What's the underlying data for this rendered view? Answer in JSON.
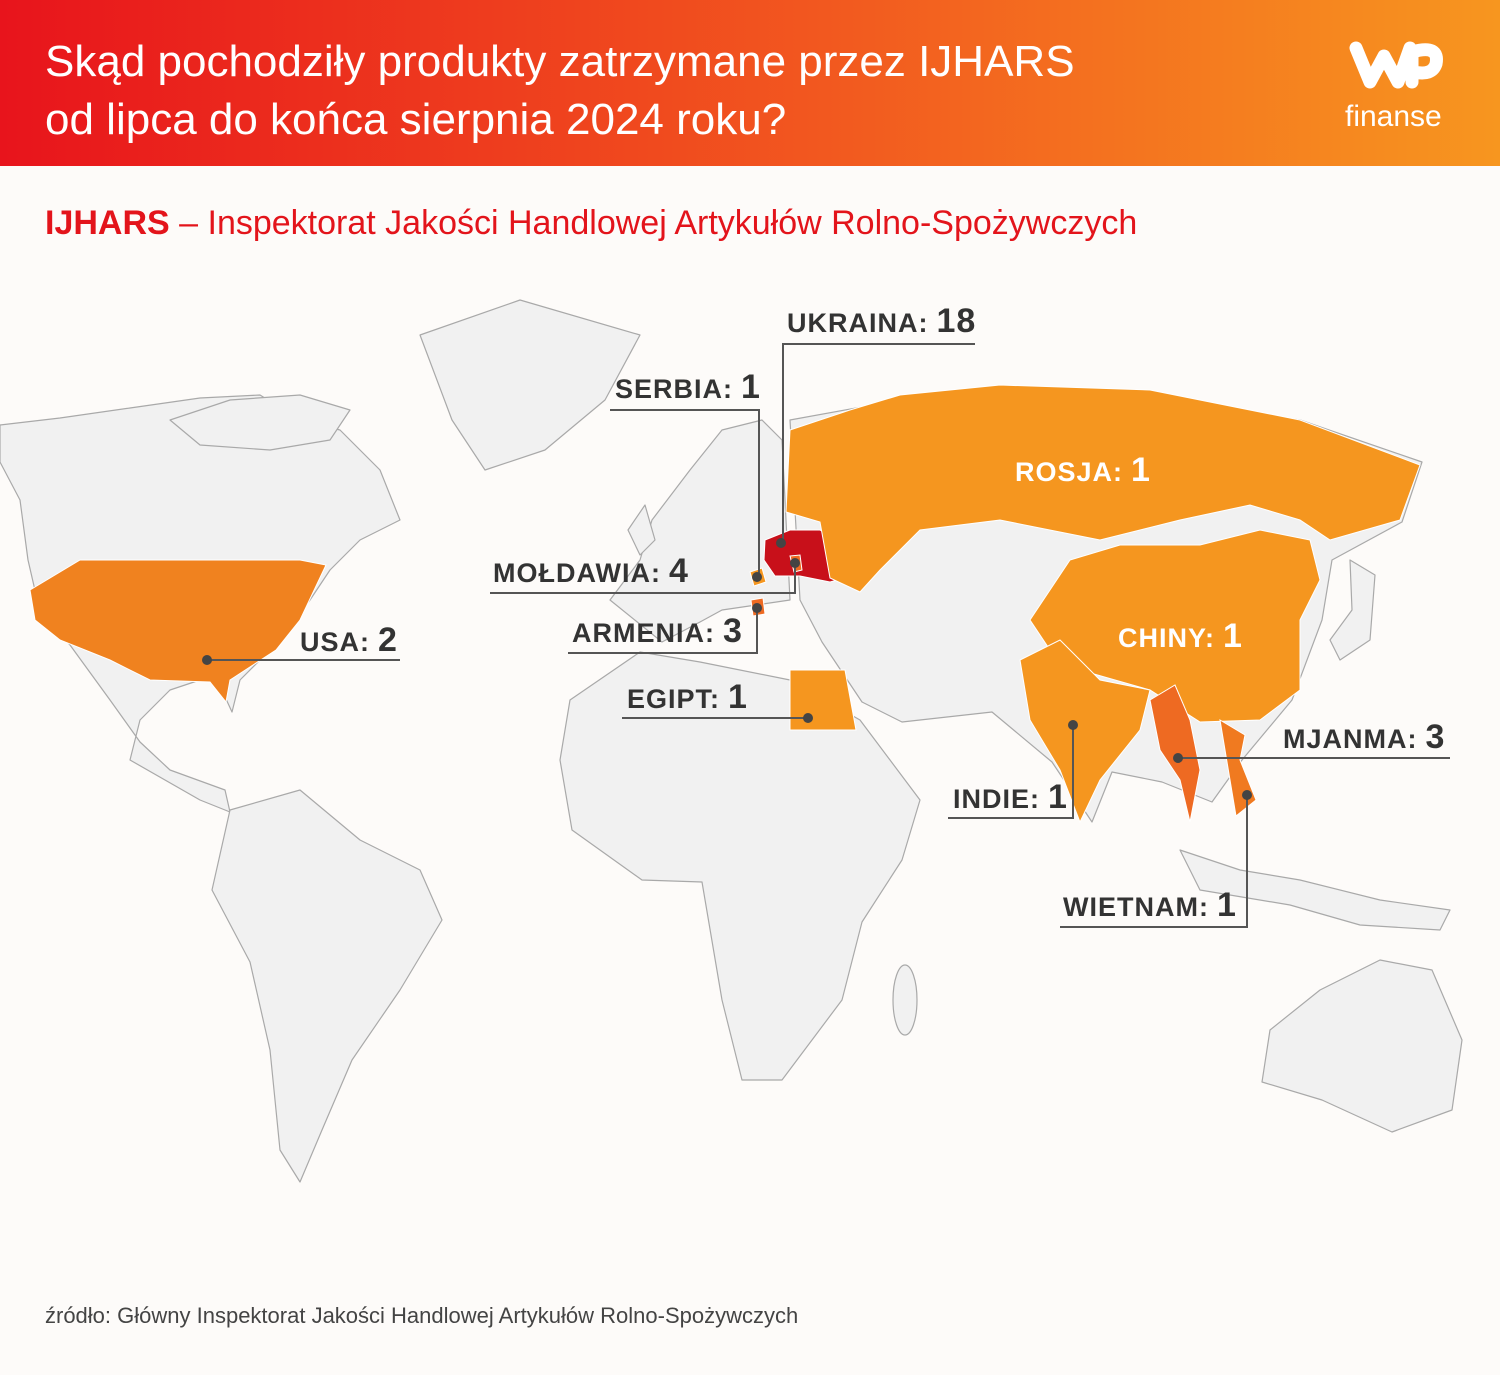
{
  "header": {
    "title": [
      "Skąd pochodziły produkty zatrzymane przez IJHARS",
      "od lipca do końca sierpnia 2024 roku?"
    ],
    "logo": "finanse"
  },
  "subtitle": {
    "abbr": "IJHARS",
    "text": "– Inspektorat Jakości Handlowej Artykułów Rolno-Spożywczych"
  },
  "map": {
    "countries": [
      {
        "name": "UKRAINA:",
        "value": 18,
        "color": "#c8101a"
      },
      {
        "name": "SERBIA:",
        "value": 1,
        "color": "#f5961f"
      },
      {
        "name": "MOŁDAWIA:",
        "value": 4,
        "color": "#ee6a22"
      },
      {
        "name": "ARMENIA:",
        "value": 3,
        "color": "#ee6a22"
      },
      {
        "name": "USA:",
        "value": 2,
        "color": "#f0821f"
      },
      {
        "name": "EGIPT:",
        "value": 1,
        "color": "#f5961f"
      },
      {
        "name": "ROSJA:",
        "value": 1,
        "color": "#f5961f"
      },
      {
        "name": "CHINY:",
        "value": 1,
        "color": "#f5961f"
      },
      {
        "name": "INDIE:",
        "value": 1,
        "color": "#f5961f"
      },
      {
        "name": "MJANMA:",
        "value": 3,
        "color": "#ee6a22"
      },
      {
        "name": "WIETNAM:",
        "value": 1,
        "color": "#f07a20"
      }
    ]
  },
  "source": "źródło: Główny Inspektorat Jakości Handlowej Artykułów Rolno-Spożywczych"
}
